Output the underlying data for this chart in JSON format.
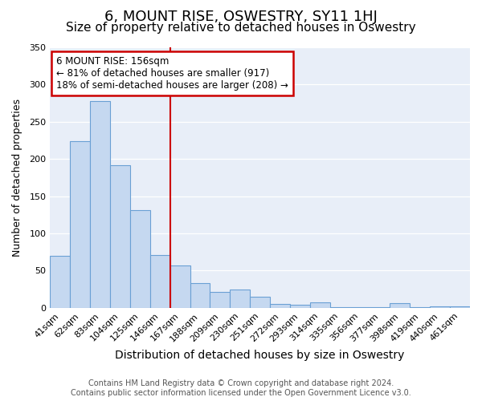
{
  "title": "6, MOUNT RISE, OSWESTRY, SY11 1HJ",
  "subtitle": "Size of property relative to detached houses in Oswestry",
  "xlabel": "Distribution of detached houses by size in Oswestry",
  "ylabel": "Number of detached properties",
  "categories": [
    "41sqm",
    "62sqm",
    "83sqm",
    "104sqm",
    "125sqm",
    "146sqm",
    "167sqm",
    "188sqm",
    "209sqm",
    "230sqm",
    "251sqm",
    "272sqm",
    "293sqm",
    "314sqm",
    "335sqm",
    "356sqm",
    "377sqm",
    "398sqm",
    "419sqm",
    "440sqm",
    "461sqm"
  ],
  "values": [
    70,
    224,
    278,
    192,
    131,
    71,
    57,
    33,
    21,
    25,
    15,
    5,
    4,
    7,
    1,
    1,
    1,
    6,
    1,
    2,
    2
  ],
  "bar_color": "#c5d8f0",
  "bar_edge_color": "#6aa0d4",
  "vline_x": 5.5,
  "vline_color": "#cc0000",
  "ylim": [
    0,
    350
  ],
  "yticks": [
    0,
    50,
    100,
    150,
    200,
    250,
    300,
    350
  ],
  "annotation_title": "6 MOUNT RISE: 156sqm",
  "annotation_line1": "← 81% of detached houses are smaller (917)",
  "annotation_line2": "18% of semi-detached houses are larger (208) →",
  "annotation_box_edgecolor": "#cc0000",
  "background_color": "#e8eef8",
  "footer_line1": "Contains HM Land Registry data © Crown copyright and database right 2024.",
  "footer_line2": "Contains public sector information licensed under the Open Government Licence v3.0.",
  "title_fontsize": 13,
  "subtitle_fontsize": 11,
  "xlabel_fontsize": 10,
  "ylabel_fontsize": 9,
  "tick_fontsize": 8,
  "footer_fontsize": 7
}
